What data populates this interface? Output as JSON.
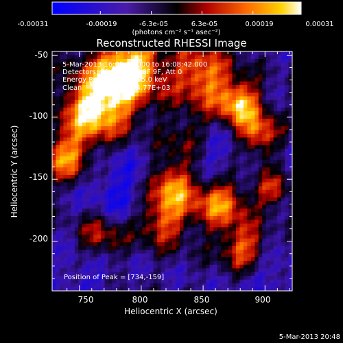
{
  "colorbar": {
    "tick_labels": [
      "-0.00031",
      "-0.00019",
      "-6.3e-05",
      "6.3e-05",
      "0.00019",
      "0.00031"
    ],
    "tick_values": [
      -0.00031,
      -0.00019,
      -6.3e-05,
      6.3e-05,
      0.00019,
      0.00031
    ],
    "range": [
      -0.00031,
      0.00031
    ],
    "unit_label": "(photons cm⁻² s⁻¹ asec⁻²)"
  },
  "chart_data": {
    "type": "heatmap",
    "title": "Reconstructed RHESSI Image",
    "xlabel": "Heliocentric X (arcsec)",
    "ylabel": "Heliocentric Y (arcsec)",
    "xlim": [
      728,
      922
    ],
    "ylim": [
      -240,
      -47
    ],
    "x_ticks": [
      750,
      800,
      850,
      900
    ],
    "y_ticks": [
      -50,
      -100,
      -150,
      -200
    ],
    "annotations": [
      "5-Mar-2013 16:05:04.000 to 16:08:42.000",
      "Detectors: 3F 5F 6F 7F 8F 9F, Att 0",
      "Energy Range: 12.0 - 25.0 keV",
      "Clean    Total counts: 4.77E+03"
    ],
    "peak_label": "Position of Peak = [734,-159]",
    "peak": [
      734,
      -159
    ],
    "timestamp": "5-Mar-2013 20:48",
    "grid": false,
    "colormap": [
      "#0000ff",
      "#5a1d99",
      "#000000",
      "#c00000",
      "#ff6a00",
      "#ffd000",
      "#ffffff"
    ]
  }
}
